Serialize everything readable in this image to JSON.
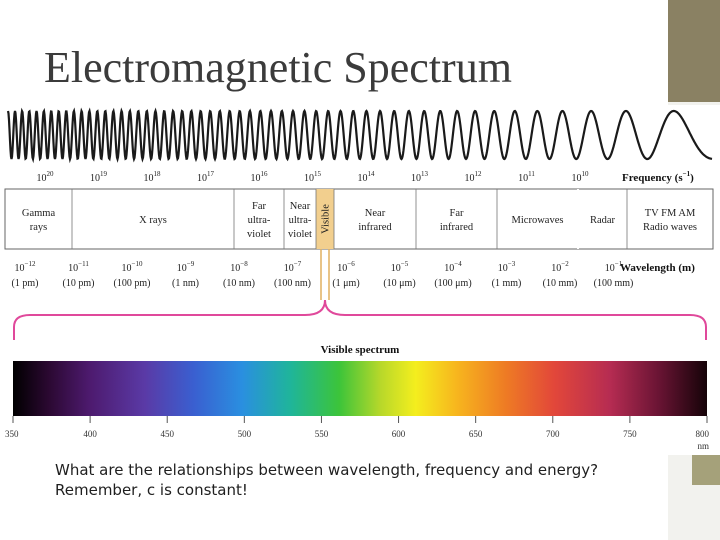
{
  "slide": {
    "title": "Electromagnetic Spectrum",
    "question": "What are the relationships between wavelength, frequency and energy? Remember, c is constant!"
  },
  "spectrum": {
    "frequency_label": "Frequency (s",
    "frequency_label_sup": "−1",
    "frequency_label_end": ")",
    "wavelength_label": "Wavelength (m)",
    "frequency_exponents": [
      "20",
      "19",
      "18",
      "17",
      "16",
      "15",
      "14",
      "13",
      "12",
      "11",
      "10"
    ],
    "bands": [
      {
        "lines": [
          "Gamma",
          "rays"
        ]
      },
      {
        "lines": [
          "X rays"
        ]
      },
      {
        "lines": [
          "Far",
          "ultra-",
          "violet"
        ]
      },
      {
        "lines": [
          "Near",
          "ultra-",
          "violet"
        ]
      },
      {
        "lines": [
          "Visible"
        ]
      },
      {
        "lines": [
          "Near",
          "infrared"
        ]
      },
      {
        "lines": [
          "Far",
          "infrared"
        ]
      },
      {
        "lines": [
          "Microwaves"
        ]
      },
      {
        "lines": [
          "Radar"
        ]
      },
      {
        "lines": [
          "TV FM AM",
          "Radio waves"
        ]
      }
    ],
    "wavelength_exponents": [
      "−12",
      "−11",
      "−10",
      "−9",
      "−8",
      "−7",
      "−6",
      "−5",
      "−4",
      "−3",
      "−2",
      "−1"
    ],
    "wavelength_units": [
      "(1 pm)",
      "(10 pm)",
      "(100 pm)",
      "(1 nm)",
      "(10 nm)",
      "(100 nm)",
      "(1 μm)",
      "(10 μm)",
      "(100 μm)",
      "(1 mm)",
      "(10 mm)",
      "(100 mm)"
    ],
    "visible_label": "Visible spectrum",
    "visible_ticks": [
      "350",
      "400",
      "450",
      "500",
      "550",
      "600",
      "650",
      "700",
      "750",
      "800"
    ],
    "visible_unit": "nm"
  },
  "colors": {
    "title": "#3b3b3b",
    "bracket": "#e0499b",
    "visible_band": "#f2cf8e",
    "accent_olive": "#8a8163"
  }
}
